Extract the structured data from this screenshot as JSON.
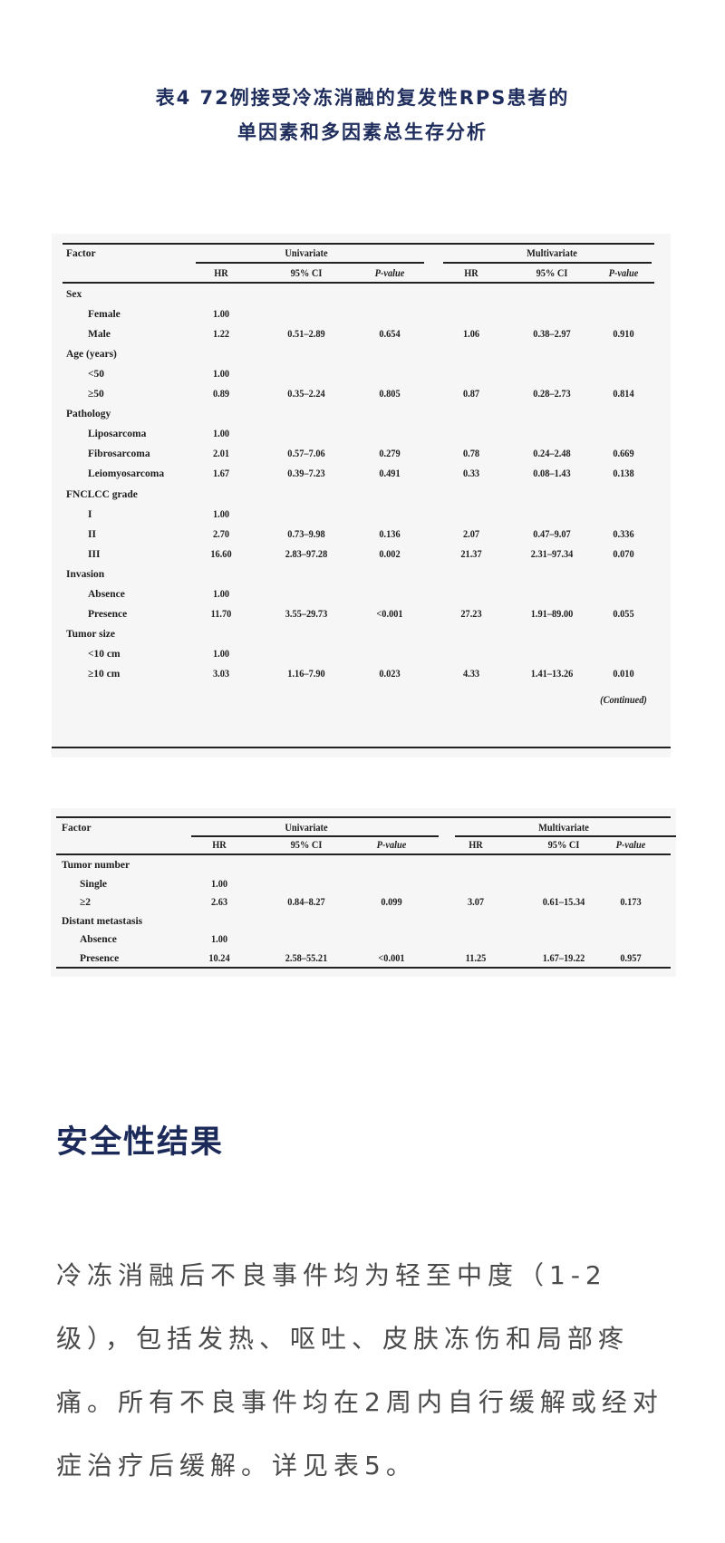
{
  "title": {
    "line1": "表4 72例接受冷冻消融的复发性RPS患者的",
    "line2": "单因素和多因素总生存分析"
  },
  "table_header": {
    "factor": "Factor",
    "univariate": "Univariate",
    "multivariate": "Multivariate",
    "columns": [
      "HR",
      "95% CI",
      "P-value",
      "HR",
      "95% CI",
      "P-value"
    ]
  },
  "table1": {
    "rows": [
      {
        "factor": "Sex",
        "group": true,
        "cells": [
          "",
          "",
          "",
          "",
          "",
          ""
        ]
      },
      {
        "factor": "Female",
        "cells": [
          "1.00",
          "",
          "",
          "",
          "",
          ""
        ]
      },
      {
        "factor": "Male",
        "cells": [
          "1.22",
          "0.51–2.89",
          "0.654",
          "1.06",
          "0.38–2.97",
          "0.910"
        ]
      },
      {
        "factor": "Age (years)",
        "group": true,
        "cells": [
          "",
          "",
          "",
          "",
          "",
          ""
        ]
      },
      {
        "factor": "<50",
        "cells": [
          "1.00",
          "",
          "",
          "",
          "",
          ""
        ]
      },
      {
        "factor": "≥50",
        "cells": [
          "0.89",
          "0.35–2.24",
          "0.805",
          "0.87",
          "0.28–2.73",
          "0.814"
        ]
      },
      {
        "factor": "Pathology",
        "group": true,
        "cells": [
          "",
          "",
          "",
          "",
          "",
          ""
        ]
      },
      {
        "factor": "Liposarcoma",
        "cells": [
          "1.00",
          "",
          "",
          "",
          "",
          ""
        ]
      },
      {
        "factor": "Fibrosarcoma",
        "cells": [
          "2.01",
          "0.57–7.06",
          "0.279",
          "0.78",
          "0.24–2.48",
          "0.669"
        ]
      },
      {
        "factor": "Leiomyosarcoma",
        "cells": [
          "1.67",
          "0.39–7.23",
          "0.491",
          "0.33",
          "0.08–1.43",
          "0.138"
        ]
      },
      {
        "factor": "FNCLCC grade",
        "group": true,
        "cells": [
          "",
          "",
          "",
          "",
          "",
          ""
        ]
      },
      {
        "factor": "I",
        "cells": [
          "1.00",
          "",
          "",
          "",
          "",
          ""
        ]
      },
      {
        "factor": "II",
        "cells": [
          "2.70",
          "0.73–9.98",
          "0.136",
          "2.07",
          "0.47–9.07",
          "0.336"
        ]
      },
      {
        "factor": "III",
        "cells": [
          "16.60",
          "2.83–97.28",
          "0.002",
          "21.37",
          "2.31–97.34",
          "0.070"
        ]
      },
      {
        "factor": "Invasion",
        "group": true,
        "cells": [
          "",
          "",
          "",
          "",
          "",
          ""
        ]
      },
      {
        "factor": "Absence",
        "cells": [
          "1.00",
          "",
          "",
          "",
          "",
          ""
        ]
      },
      {
        "factor": "Presence",
        "cells": [
          "11.70",
          "3.55–29.73",
          "<0.001",
          "27.23",
          "1.91–89.00",
          "0.055"
        ]
      },
      {
        "factor": "Tumor size",
        "group": true,
        "cells": [
          "",
          "",
          "",
          "",
          "",
          ""
        ]
      },
      {
        "factor": "<10 cm",
        "cells": [
          "1.00",
          "",
          "",
          "",
          "",
          ""
        ]
      },
      {
        "factor": "≥10 cm",
        "cells": [
          "3.03",
          "1.16–7.90",
          "0.023",
          "4.33",
          "1.41–13.26",
          "0.010"
        ]
      }
    ],
    "continued": "(Continued)"
  },
  "table2": {
    "rows": [
      {
        "factor": "Tumor number",
        "group": true,
        "cells": [
          "",
          "",
          "",
          "",
          "",
          ""
        ]
      },
      {
        "factor": "Single",
        "cells": [
          "1.00",
          "",
          "",
          "",
          "",
          ""
        ]
      },
      {
        "factor": "≥2",
        "cells": [
          "2.63",
          "0.84–8.27",
          "0.099",
          "3.07",
          "0.61–15.34",
          "0.173"
        ]
      },
      {
        "factor": "Distant metastasis",
        "group": true,
        "cells": [
          "",
          "",
          "",
          "",
          "",
          ""
        ]
      },
      {
        "factor": "Absence",
        "cells": [
          "1.00",
          "",
          "",
          "",
          "",
          ""
        ]
      },
      {
        "factor": "Presence",
        "cells": [
          "10.24",
          "2.58–55.21",
          "<0.001",
          "11.25",
          "1.67–19.22",
          "0.957"
        ]
      }
    ]
  },
  "section": {
    "heading": "安全性结果",
    "paragraph": "冷冻消融后不良事件均为轻至中度（1-2级），包括发热、呕吐、皮肤冻伤和局部疼痛。所有不良事件均在2周内自行缓解或经对症治疗后缓解。详见表5。"
  },
  "colors": {
    "title": "#1f2d5c",
    "heading": "#1c2a5a",
    "body_text": "#4a4a4a",
    "table_bg": "#f6f6f6"
  }
}
